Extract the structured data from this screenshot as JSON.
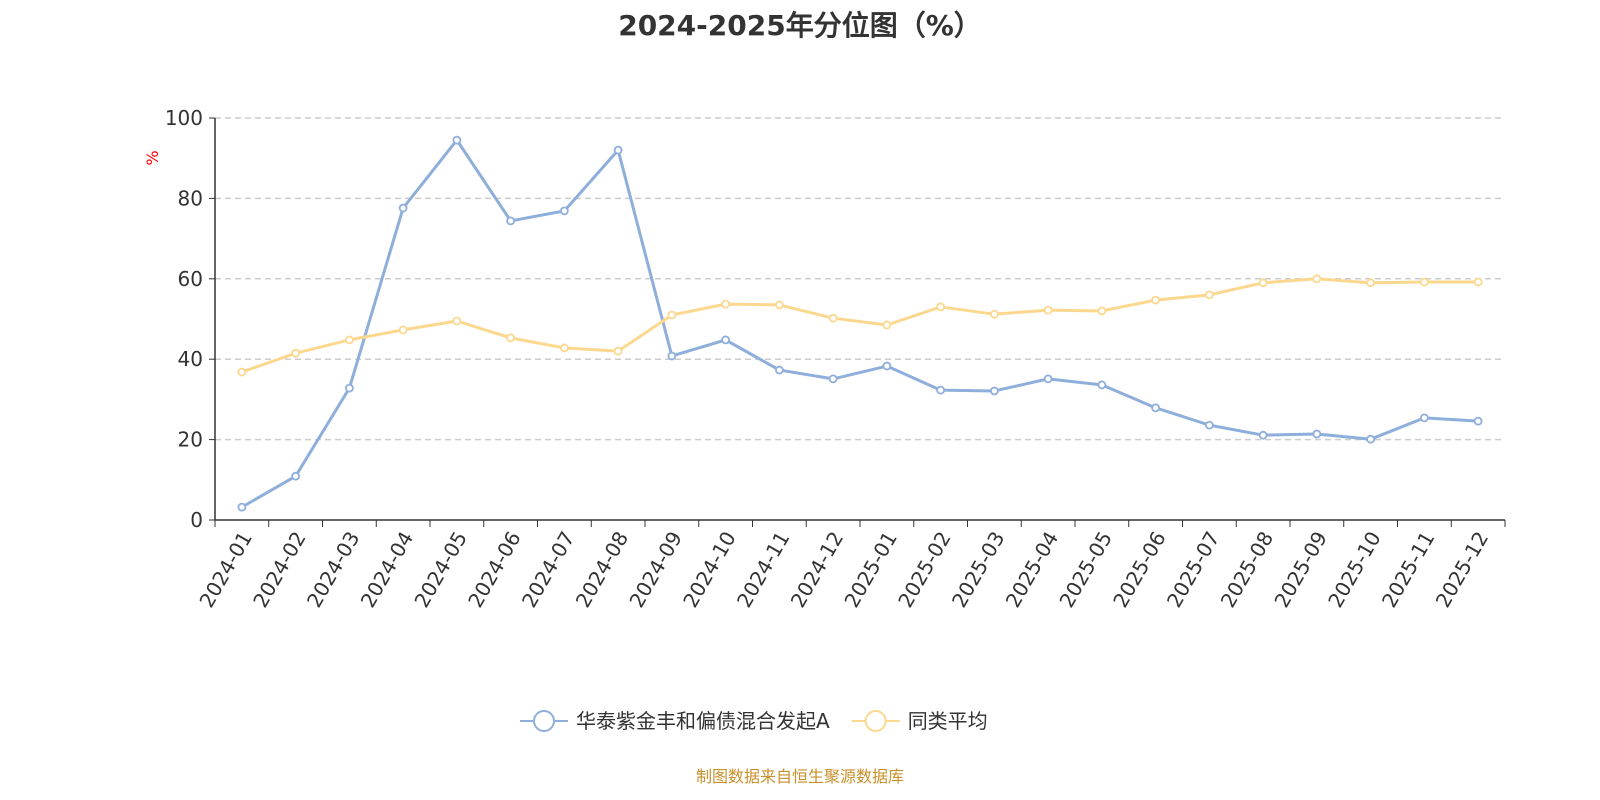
{
  "chart_data": {
    "type": "line",
    "title": "2024-2025年分位图（%）",
    "ylabel": "%",
    "xlabel": "",
    "ylim": [
      0,
      100
    ],
    "yticks": [
      0,
      20,
      40,
      60,
      80,
      100
    ],
    "grid": true,
    "legend_position": "bottom",
    "categories": [
      "2024-01",
      "2024-02",
      "2024-03",
      "2024-04",
      "2024-05",
      "2024-06",
      "2024-07",
      "2024-08",
      "2024-09",
      "2024-10",
      "2024-11",
      "2024-12",
      "2025-01",
      "2025-02",
      "2025-03",
      "2025-04",
      "2025-05",
      "2025-06",
      "2025-07",
      "2025-08",
      "2025-09",
      "2025-10",
      "2025-11",
      "2025-12"
    ],
    "series": [
      {
        "name": "华泰紫金丰和偏债混合发起A",
        "color": "#8eaedb",
        "values": [
          3.2,
          10.9,
          32.8,
          77.6,
          94.5,
          74.4,
          76.9,
          92.0,
          40.8,
          44.8,
          37.3,
          35.1,
          38.3,
          32.3,
          32.1,
          35.1,
          33.6,
          27.9,
          23.6,
          21.1,
          21.4,
          20.1,
          25.4,
          24.6
        ]
      },
      {
        "name": "同类平均",
        "color": "#fcd88f",
        "values": [
          36.8,
          41.5,
          44.8,
          47.3,
          49.5,
          45.3,
          42.8,
          42.0,
          51.0,
          53.7,
          53.5,
          50.2,
          48.5,
          53.0,
          51.2,
          52.2,
          52.0,
          54.7,
          56.0,
          59.0,
          60.0,
          59.0,
          59.2,
          59.2
        ]
      }
    ]
  },
  "source": "制图数据来自恒生聚源数据库"
}
